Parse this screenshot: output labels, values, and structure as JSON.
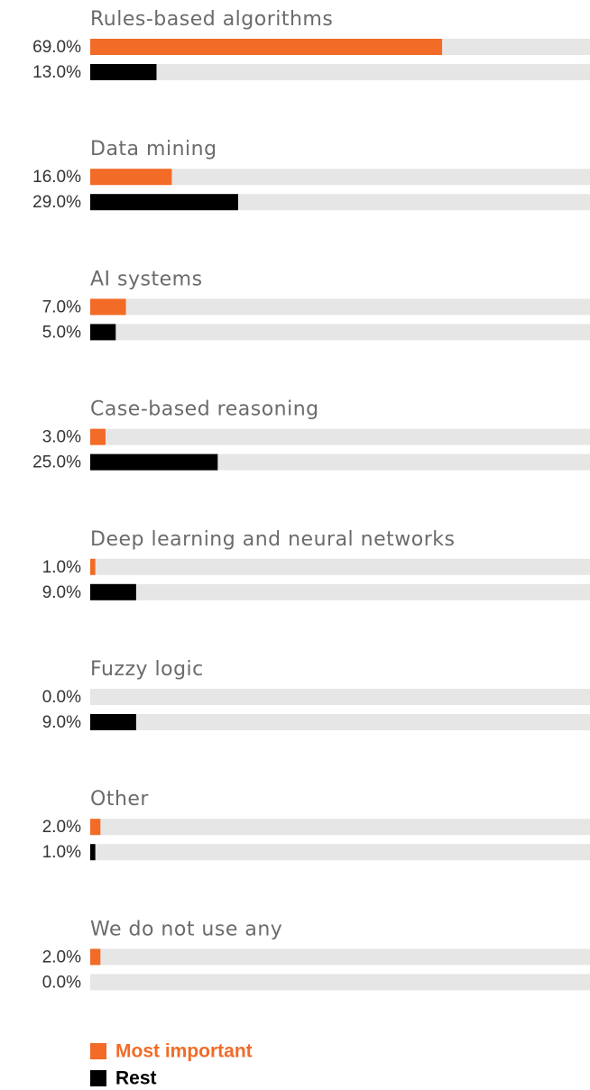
{
  "chart_data": {
    "type": "bar",
    "orientation": "horizontal",
    "categories": [
      "Rules-based algorithms",
      "Data mining",
      "AI systems",
      "Case-based reasoning",
      "Deep learning and neural networks",
      "Fuzzy logic",
      "Other",
      "We do not use any"
    ],
    "series": [
      {
        "name": "Most important",
        "color": "#f26b27",
        "values": [
          69,
          16,
          7,
          3,
          1,
          0,
          2,
          2
        ],
        "value_labels": [
          "69.0%",
          "16.0%",
          "7.0%",
          "3.0%",
          "1.0%",
          "0.0%",
          "2.0%",
          "2.0%"
        ]
      },
      {
        "name": "Rest",
        "color": "#000000",
        "values": [
          13,
          29,
          5,
          25,
          9,
          9,
          1,
          0
        ],
        "value_labels": [
          "13.0%",
          "29.0%",
          "5.0%",
          "25.0%",
          "9.0%",
          "9.0%",
          "1.0%",
          "0.0%"
        ]
      }
    ],
    "xlim": [
      0,
      98
    ],
    "track_color": "#e6e6e6"
  }
}
